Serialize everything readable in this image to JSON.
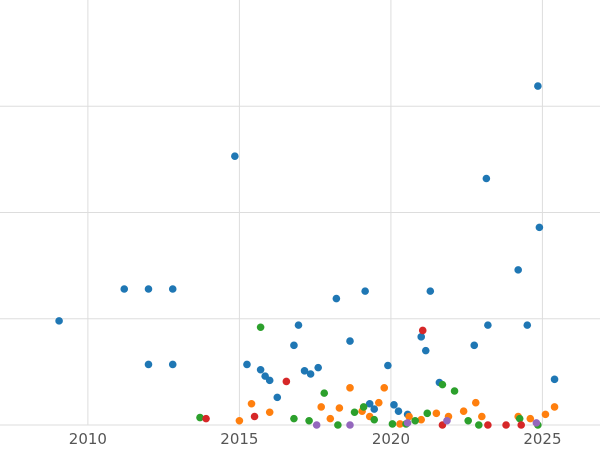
{
  "chart_data": {
    "type": "scatter",
    "title": "",
    "xlabel": "",
    "ylabel": "",
    "xlim": [
      2007.1,
      2026.9
    ],
    "ylim": [
      0,
      4.0
    ],
    "grid": true,
    "grid_color": "#dddddd",
    "background": "#ffffff",
    "tick_label_color": "#555555",
    "marker_radius": 3.8,
    "legend": "none",
    "x_ticks": [
      {
        "value": 2010,
        "label": "2010"
      },
      {
        "value": 2015,
        "label": "2015"
      },
      {
        "value": 2020,
        "label": "2020"
      },
      {
        "value": 2025,
        "label": "2025"
      }
    ],
    "y_gridlines": [
      0,
      1,
      2,
      3
    ],
    "series": [
      {
        "name": "blue",
        "color": "#1f77b4",
        "points": [
          [
            2009.05,
            0.98
          ],
          [
            2011.2,
            1.28
          ],
          [
            2012.0,
            1.28
          ],
          [
            2012.0,
            0.57
          ],
          [
            2012.8,
            1.28
          ],
          [
            2012.8,
            0.57
          ],
          [
            2014.85,
            2.53
          ],
          [
            2015.25,
            0.57
          ],
          [
            2015.7,
            0.52
          ],
          [
            2015.85,
            0.46
          ],
          [
            2016.0,
            0.42
          ],
          [
            2016.25,
            0.26
          ],
          [
            2016.8,
            0.75
          ],
          [
            2016.95,
            0.94
          ],
          [
            2017.15,
            0.51
          ],
          [
            2017.35,
            0.48
          ],
          [
            2017.6,
            0.54
          ],
          [
            2018.2,
            1.19
          ],
          [
            2018.65,
            0.79
          ],
          [
            2019.15,
            1.26
          ],
          [
            2019.3,
            0.2
          ],
          [
            2019.45,
            0.15
          ],
          [
            2019.9,
            0.56
          ],
          [
            2020.1,
            0.19
          ],
          [
            2020.25,
            0.13
          ],
          [
            2020.55,
            0.1
          ],
          [
            2021.0,
            0.83
          ],
          [
            2021.15,
            0.7
          ],
          [
            2021.3,
            1.26
          ],
          [
            2021.6,
            0.4
          ],
          [
            2022.75,
            0.75
          ],
          [
            2023.15,
            2.32
          ],
          [
            2023.2,
            0.94
          ],
          [
            2024.2,
            1.46
          ],
          [
            2024.5,
            0.94
          ],
          [
            2024.85,
            3.19
          ],
          [
            2024.9,
            1.86
          ],
          [
            2025.4,
            0.43
          ]
        ]
      },
      {
        "name": "orange",
        "color": "#ff7f0e",
        "points": [
          [
            2015.0,
            0.04
          ],
          [
            2015.4,
            0.2
          ],
          [
            2016.0,
            0.12
          ],
          [
            2017.7,
            0.17
          ],
          [
            2018.0,
            0.06
          ],
          [
            2018.3,
            0.16
          ],
          [
            2018.65,
            0.35
          ],
          [
            2019.05,
            0.13
          ],
          [
            2019.3,
            0.08
          ],
          [
            2019.6,
            0.21
          ],
          [
            2019.78,
            0.35
          ],
          [
            2020.3,
            0.01
          ],
          [
            2020.6,
            0.08
          ],
          [
            2021.0,
            0.05
          ],
          [
            2021.5,
            0.11
          ],
          [
            2021.9,
            0.08
          ],
          [
            2022.4,
            0.13
          ],
          [
            2022.8,
            0.21
          ],
          [
            2023.0,
            0.08
          ],
          [
            2024.2,
            0.08
          ],
          [
            2024.6,
            0.06
          ],
          [
            2025.1,
            0.1
          ],
          [
            2025.4,
            0.17
          ]
        ]
      },
      {
        "name": "green",
        "color": "#2ca02c",
        "points": [
          [
            2013.7,
            0.07
          ],
          [
            2015.7,
            0.92
          ],
          [
            2016.8,
            0.06
          ],
          [
            2017.3,
            0.04
          ],
          [
            2017.8,
            0.3
          ],
          [
            2018.25,
            0.0
          ],
          [
            2018.8,
            0.12
          ],
          [
            2019.1,
            0.17
          ],
          [
            2019.45,
            0.05
          ],
          [
            2020.05,
            0.01
          ],
          [
            2020.5,
            0.01
          ],
          [
            2020.8,
            0.04
          ],
          [
            2021.2,
            0.11
          ],
          [
            2021.7,
            0.38
          ],
          [
            2022.1,
            0.32
          ],
          [
            2022.55,
            0.04
          ],
          [
            2022.9,
            0.0
          ],
          [
            2024.25,
            0.06
          ],
          [
            2024.85,
            0.0
          ]
        ]
      },
      {
        "name": "red",
        "color": "#d62728",
        "points": [
          [
            2013.9,
            0.06
          ],
          [
            2015.5,
            0.08
          ],
          [
            2016.55,
            0.41
          ],
          [
            2021.05,
            0.89
          ],
          [
            2021.7,
            0.0
          ],
          [
            2023.2,
            0.0
          ],
          [
            2023.8,
            0.0
          ],
          [
            2024.3,
            0.0
          ]
        ]
      },
      {
        "name": "purple",
        "color": "#9467bd",
        "points": [
          [
            2017.55,
            0.0
          ],
          [
            2018.65,
            0.0
          ],
          [
            2020.55,
            0.02
          ],
          [
            2021.85,
            0.04
          ],
          [
            2024.8,
            0.02
          ]
        ]
      }
    ]
  }
}
